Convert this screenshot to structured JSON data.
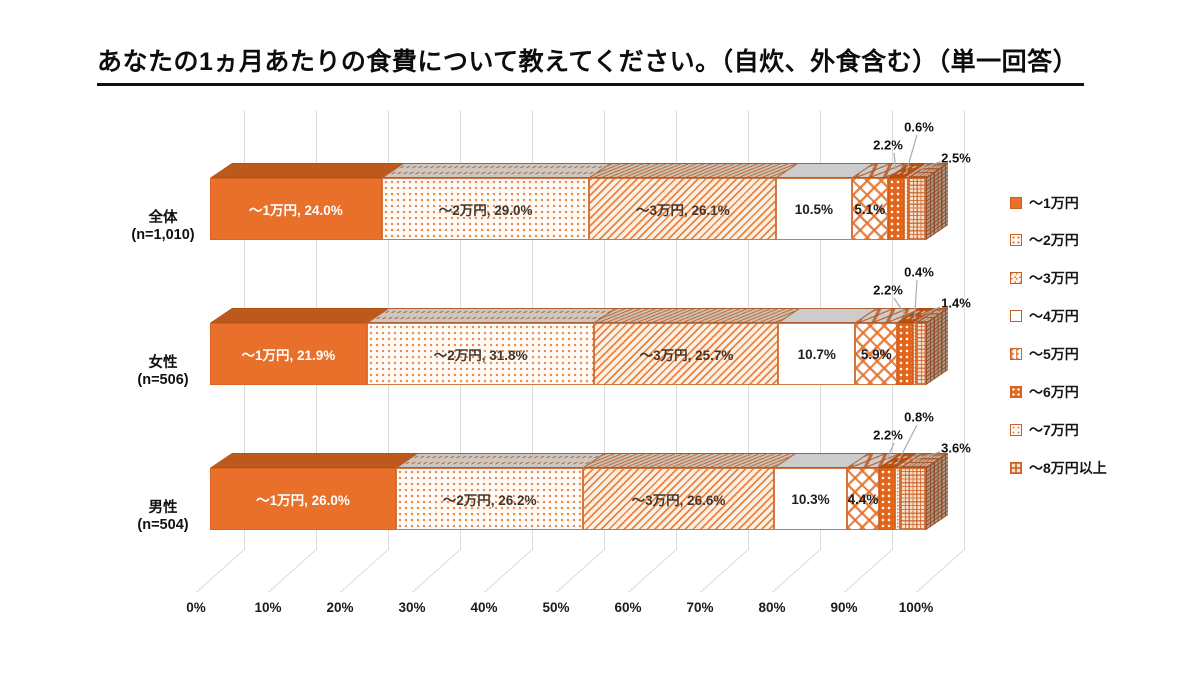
{
  "title": "あなたの1ヵ月あたりの食費について教えてください。（自炊、外食含む）（単一回答）",
  "chart_data": {
    "type": "bar",
    "subtype": "horizontal-stacked-3d",
    "unit": "percent",
    "categories": [
      "全体",
      "女性",
      "男性"
    ],
    "category_sublabels": [
      "(n=1,010)",
      "(n=506)",
      "(n=504)"
    ],
    "series_names": [
      "～1万円",
      "～2万円",
      "～3万円",
      "～4万円",
      "～5万円",
      "～6万円",
      "～7万円",
      "～8万円以上"
    ],
    "rows": [
      {
        "category": "全体",
        "values": [
          24.0,
          29.0,
          26.1,
          10.5,
          5.1,
          2.2,
          0.6,
          2.5
        ]
      },
      {
        "category": "女性",
        "values": [
          21.9,
          31.8,
          25.7,
          10.7,
          5.9,
          2.2,
          0.4,
          1.4
        ]
      },
      {
        "category": "男性",
        "values": [
          26.0,
          26.2,
          26.6,
          10.3,
          4.4,
          2.2,
          0.8,
          3.6
        ]
      }
    ],
    "x_axis": {
      "range": [
        0,
        100
      ],
      "ticks": [
        "0%",
        "10%",
        "20%",
        "30%",
        "40%",
        "50%",
        "60%",
        "70%",
        "80%",
        "90%",
        "100%"
      ]
    },
    "legend_position": "right",
    "grid": true
  },
  "colors": {
    "accent_orange": "#E8702A",
    "accent_orange_dark": "#C55A11",
    "gridline": "#DCDCDC",
    "text": "#111111"
  }
}
